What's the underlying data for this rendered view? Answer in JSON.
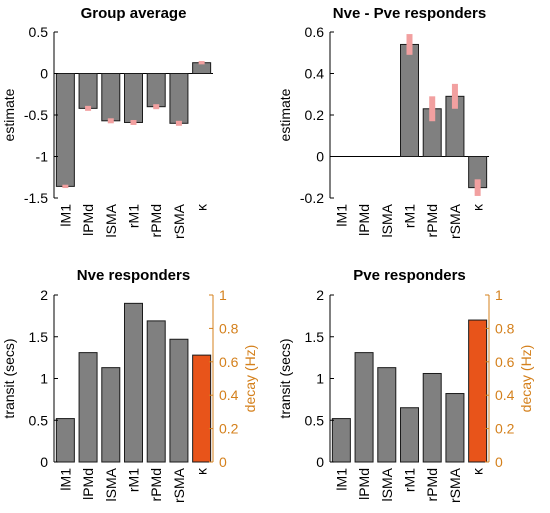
{
  "colors": {
    "bar": "#808080",
    "bar_stroke": "#1a1a1a",
    "highlight_bar": "#e8541a",
    "error": "#f2a0a0",
    "right_axis": "#d4801c"
  },
  "chart_data": [
    {
      "type": "bar",
      "title": "Group average",
      "ylabel": "estimate",
      "categories": [
        "lM1",
        "lPMd",
        "lSMA",
        "rM1",
        "rPMd",
        "rSMA",
        "κ"
      ],
      "values": [
        -1.36,
        -0.42,
        -0.57,
        -0.59,
        -0.4,
        -0.6,
        0.13
      ],
      "error_low": [
        -1.38,
        -0.45,
        -0.6,
        -0.62,
        -0.43,
        -0.63,
        0.11
      ],
      "error_high": [
        -1.34,
        -0.39,
        -0.54,
        -0.56,
        -0.37,
        -0.57,
        0.15
      ],
      "ylim": [
        -1.5,
        0.5
      ],
      "yticks": [
        -1.5,
        -1,
        -0.5,
        0,
        0.5
      ],
      "ytick_labels": [
        "-1.5",
        "-1",
        "-0.5",
        "0",
        "0.5"
      ],
      "zero_line": true,
      "grid": false
    },
    {
      "type": "bar",
      "title": "Nve - Pve responders",
      "ylabel": "estimate",
      "categories": [
        "lM1",
        "lPMd",
        "lSMA",
        "rM1",
        "rPMd",
        "rSMA",
        "κ"
      ],
      "values": [
        0,
        0,
        0,
        0.54,
        0.23,
        0.29,
        -0.15
      ],
      "error_low": [
        0,
        0,
        0,
        0.49,
        0.17,
        0.23,
        -0.19
      ],
      "error_high": [
        0,
        0,
        0,
        0.59,
        0.29,
        0.35,
        -0.11
      ],
      "ylim": [
        -0.2,
        0.6
      ],
      "yticks": [
        -0.2,
        0,
        0.2,
        0.4,
        0.6
      ],
      "ytick_labels": [
        "-0.2",
        "0",
        "0.2",
        "0.4",
        "0.6"
      ],
      "zero_line": true,
      "grid": false
    },
    {
      "type": "bar",
      "title": "Nve responders",
      "ylabel": "transit (secs)",
      "y2label": "decay (Hz)",
      "categories": [
        "lM1",
        "lPMd",
        "lSMA",
        "rM1",
        "rPMd",
        "rSMA",
        "κ"
      ],
      "values": [
        0.52,
        1.31,
        1.13,
        1.9,
        1.69,
        1.47,
        0.64
      ],
      "highlight_index": 6,
      "highlight_axis": "right",
      "ylim": [
        0,
        2
      ],
      "yticks": [
        0,
        0.5,
        1,
        1.5,
        2
      ],
      "ytick_labels": [
        "0",
        "0.5",
        "1",
        "1.5",
        "2"
      ],
      "y2lim": [
        0,
        1
      ],
      "y2ticks": [
        0,
        0.2,
        0.4,
        0.6,
        0.8,
        1
      ],
      "y2tick_labels": [
        "0",
        "0.2",
        "0.4",
        "0.6",
        "0.8",
        "1"
      ],
      "grid": false
    },
    {
      "type": "bar",
      "title": "Pve responders",
      "ylabel": "transit (secs)",
      "y2label": "decay (Hz)",
      "categories": [
        "lM1",
        "lPMd",
        "lSMA",
        "rM1",
        "rPMd",
        "rSMA",
        "κ"
      ],
      "values": [
        0.52,
        1.31,
        1.13,
        0.65,
        1.06,
        0.82,
        0.85
      ],
      "highlight_index": 6,
      "highlight_axis": "right",
      "ylim": [
        0,
        2
      ],
      "yticks": [
        0,
        0.5,
        1,
        1.5,
        2
      ],
      "ytick_labels": [
        "0",
        "0.5",
        "1",
        "1.5",
        "2"
      ],
      "y2lim": [
        0,
        1
      ],
      "y2ticks": [
        0,
        0.2,
        0.4,
        0.6,
        0.8,
        1
      ],
      "y2tick_labels": [
        "0",
        "0.2",
        "0.4",
        "0.6",
        "0.8",
        "1"
      ],
      "grid": false
    }
  ]
}
